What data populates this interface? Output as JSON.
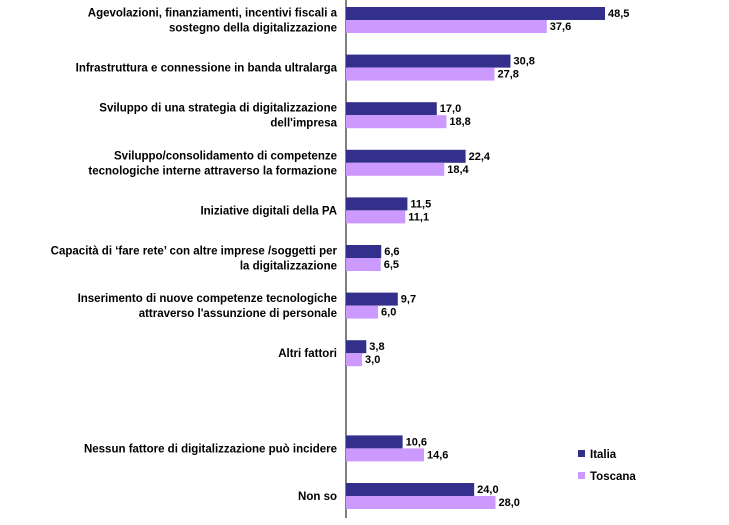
{
  "chart_data": {
    "type": "bar",
    "orientation": "horizontal",
    "categories": [
      [
        "Agevolazioni, finanziamenti, incentivi fiscali a",
        "sostegno della digitalizzazione"
      ],
      [
        "Infrastruttura e connessione in banda ultralarga"
      ],
      [
        "Sviluppo  di una strategia di digitalizzazione",
        "dell'impresa"
      ],
      [
        "Sviluppo/consolidamento  di competenze",
        "tecnologiche interne attraverso la formazione"
      ],
      [
        "Iniziative digitali della PA"
      ],
      [
        "Capacità di ‘fare rete’ con altre imprese /soggetti per",
        "la digitalizzazione"
      ],
      [
        "Inserimento di nuove competenze tecnologiche",
        "attraverso l'assunzione di personale"
      ],
      [
        "Altri fattori"
      ],
      [],
      [
        "Nessun fattore di digitalizzazione può incidere"
      ],
      [
        "Non so"
      ]
    ],
    "series": [
      {
        "name": "Italia",
        "color": "#33308C",
        "values": [
          48.5,
          30.8,
          17.0,
          22.4,
          11.5,
          6.6,
          9.7,
          3.8,
          null,
          10.6,
          24.0
        ],
        "labels": [
          "48,5",
          "30,8",
          "17,0",
          "22,4",
          "11,5",
          "6,6",
          "9,7",
          "3,8",
          "",
          "10,6",
          "24,0"
        ]
      },
      {
        "name": "Toscana",
        "color": "#CC99FF",
        "values": [
          37.6,
          27.8,
          18.8,
          18.4,
          11.1,
          6.5,
          6.0,
          3.0,
          null,
          14.6,
          28.0
        ],
        "labels": [
          "37,6",
          "27,8",
          "18,8",
          "18,4",
          "11,1",
          "6,5",
          "6,0",
          "3,0",
          "",
          "14,6",
          "28,0"
        ]
      }
    ],
    "xlim": [
      0,
      52
    ],
    "grid": false,
    "legend_position": "bottom-right"
  }
}
